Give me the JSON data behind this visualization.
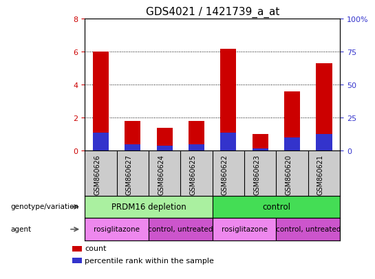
{
  "title": "GDS4021 / 1421739_a_at",
  "samples": [
    "GSM860626",
    "GSM860627",
    "GSM860624",
    "GSM860625",
    "GSM860622",
    "GSM860623",
    "GSM860620",
    "GSM860621"
  ],
  "count_values": [
    6.0,
    1.8,
    1.4,
    1.8,
    6.2,
    1.0,
    3.6,
    5.3
  ],
  "percentile_values": [
    13.75,
    5.0,
    3.75,
    5.0,
    13.75,
    1.875,
    10.0,
    12.5
  ],
  "ylim_left": [
    0,
    8
  ],
  "ylim_right": [
    0,
    100
  ],
  "yticks_left": [
    0,
    2,
    4,
    6,
    8
  ],
  "yticks_right": [
    0,
    25,
    50,
    75,
    100
  ],
  "yticklabels_right": [
    "0",
    "25",
    "50",
    "75",
    "100%"
  ],
  "bar_color_red": "#cc0000",
  "bar_color_blue": "#3333cc",
  "bar_width": 0.5,
  "genotype_groups": [
    {
      "label": "PRDM16 depletion",
      "start": 0,
      "end": 4,
      "color": "#aaf0a0"
    },
    {
      "label": "control",
      "start": 4,
      "end": 8,
      "color": "#44dd55"
    }
  ],
  "agent_groups": [
    {
      "label": "rosiglitazone",
      "start": 0,
      "end": 2,
      "color": "#ee88ee"
    },
    {
      "label": "control, untreated",
      "start": 2,
      "end": 4,
      "color": "#cc55cc"
    },
    {
      "label": "rosiglitazone",
      "start": 4,
      "end": 6,
      "color": "#ee88ee"
    },
    {
      "label": "control, untreated",
      "start": 6,
      "end": 8,
      "color": "#cc55cc"
    }
  ],
  "left_label_geno": "genotype/variation",
  "left_label_agent": "agent",
  "legend_items": [
    {
      "label": "count",
      "color": "#cc0000"
    },
    {
      "label": "percentile rank within the sample",
      "color": "#3333cc"
    }
  ],
  "background_color": "#ffffff",
  "plot_bg_color": "#ffffff",
  "tick_area_bg": "#cccccc",
  "title_fontsize": 11
}
